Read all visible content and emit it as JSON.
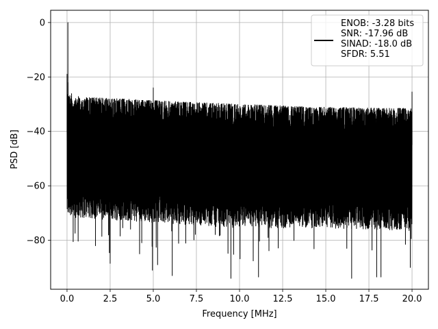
{
  "chart_data": {
    "type": "line",
    "title": "",
    "xlabel": "Frequency [MHz]",
    "ylabel": "PSD [dB]",
    "xlim": [
      -0.95,
      20.95
    ],
    "ylim": [
      -98,
      4.5
    ],
    "xticks": [
      0.0,
      2.5,
      5.0,
      7.5,
      10.0,
      12.5,
      15.0,
      17.5,
      20.0
    ],
    "xtick_labels": [
      "0.0",
      "2.5",
      "5.0",
      "7.5",
      "10.0",
      "12.5",
      "15.0",
      "17.5",
      "20.0"
    ],
    "yticks": [
      0,
      -20,
      -40,
      -60,
      -80
    ],
    "ytick_labels": [
      "0",
      "−20",
      "−40",
      "−60",
      "−80"
    ],
    "grid": true,
    "legend_position": "top-right",
    "series": [
      {
        "name": "ENOB: -3.28 bits\nSNR: -17.96 dB\nSINAD: -18.0 dB\nSFDR: 5.51",
        "color": "#000000",
        "features": {
          "fundamental_peak": {
            "x": 0.05,
            "y": 0
          },
          "spurs": [
            {
              "x": 0.0,
              "y": -19
            },
            {
              "x": 5.0,
              "y": -24
            },
            {
              "x": 20.0,
              "y": -25.5
            }
          ],
          "upper_envelope": [
            [
              0.2,
              -26
            ],
            [
              1.0,
              -27.5
            ],
            [
              3.0,
              -28
            ],
            [
              6.0,
              -29
            ],
            [
              10.0,
              -30
            ],
            [
              14.0,
              -31
            ],
            [
              18.0,
              -31.5
            ],
            [
              20.0,
              -31.5
            ]
          ],
          "lower_envelope_typical": [
            [
              0.0,
              -68
            ],
            [
              5.0,
              -70
            ],
            [
              10.0,
              -72
            ],
            [
              15.0,
              -72
            ],
            [
              20.0,
              -73
            ]
          ],
          "deep_nulls": [
            {
              "x": 1.65,
              "y": -82
            },
            {
              "x": 2.5,
              "y": -88.5
            },
            {
              "x": 4.95,
              "y": -91
            },
            {
              "x": 5.25,
              "y": -89
            },
            {
              "x": 6.1,
              "y": -93
            },
            {
              "x": 9.5,
              "y": -94
            },
            {
              "x": 11.1,
              "y": -93.5
            },
            {
              "x": 16.5,
              "y": -94
            },
            {
              "x": 17.95,
              "y": -93.5
            },
            {
              "x": 18.2,
              "y": -93.5
            },
            {
              "x": 19.9,
              "y": -90
            }
          ]
        }
      }
    ]
  },
  "legend": {
    "lines": [
      "ENOB: -3.28 bits",
      "SNR: -17.96 dB",
      "SINAD: -18.0 dB",
      "SFDR: 5.51"
    ]
  }
}
